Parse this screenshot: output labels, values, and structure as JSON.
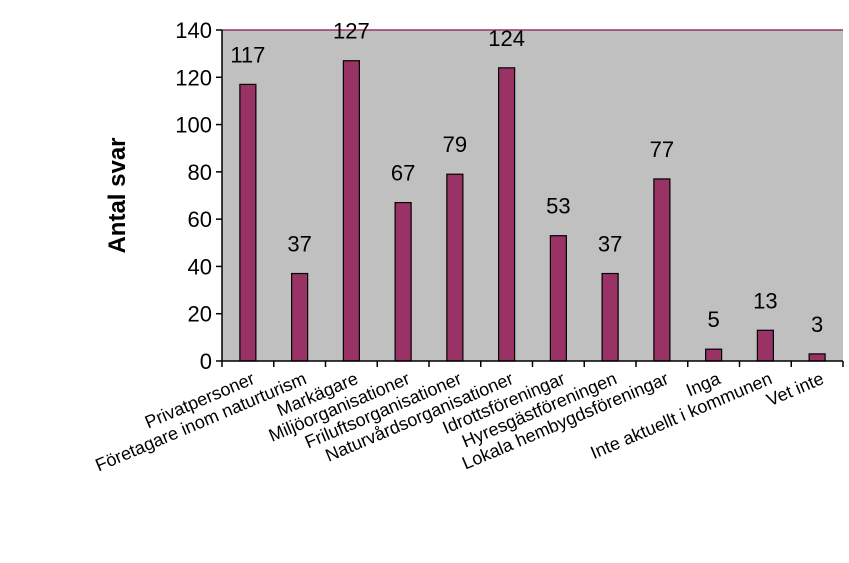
{
  "chart_data": {
    "type": "bar",
    "categories": [
      "Privatpersoner",
      "Företagare inom naturturism",
      "Markägare",
      "Miljöorganisationer",
      "Friluftsorganisationer",
      "Naturvårdsorganisationer",
      "Idrottsföreningar",
      "Hyresgästföreningen",
      "Lokala hembygdsföreningar",
      "Inga",
      "Inte aktuellt i kommunen",
      "Vet inte"
    ],
    "values": [
      117,
      37,
      127,
      67,
      79,
      124,
      53,
      37,
      77,
      5,
      13,
      3
    ],
    "title": "",
    "xlabel": "",
    "ylabel": "Antal svar",
    "ylim": [
      0,
      140
    ],
    "yticks": [
      0,
      20,
      40,
      60,
      80,
      100,
      120,
      140
    ],
    "grid": false,
    "legend": "none",
    "colors": {
      "bar_fill": "#993366",
      "bar_stroke": "#000000",
      "plot_background": "#c0c0c0",
      "plot_top_line": "#993366"
    }
  }
}
